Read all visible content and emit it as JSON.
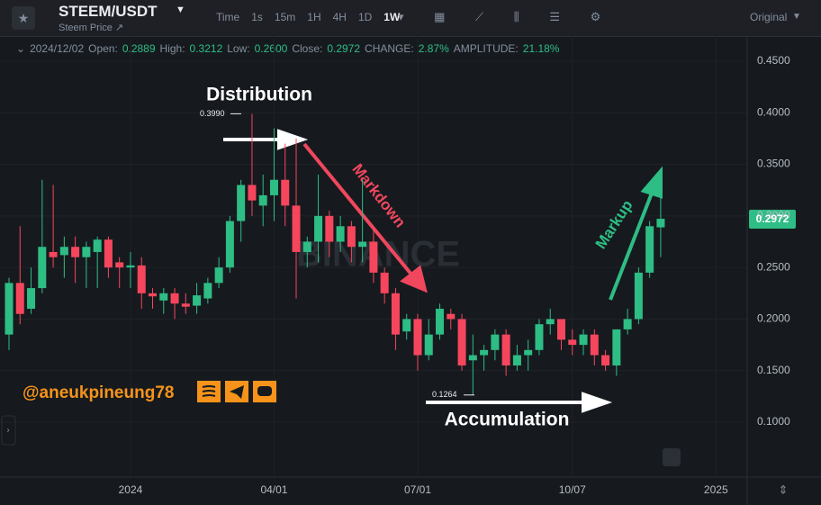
{
  "header": {
    "symbol": "STEEM/USDT",
    "subtitle": "Steem Price ↗",
    "toolbar": [
      "Time",
      "1s",
      "15m",
      "1H",
      "4H",
      "1D",
      "1W"
    ],
    "active_interval": "1W",
    "mode": "Original"
  },
  "info": {
    "date": "2024/12/02",
    "fields": [
      [
        "Open:",
        "0.2889"
      ],
      [
        "High:",
        "0.3212"
      ],
      [
        "Low:",
        "0.2600"
      ],
      [
        "Close:",
        "0.2972"
      ],
      [
        "CHANGE:",
        "2.87%"
      ],
      [
        "AMPLITUDE:",
        "21.18%"
      ]
    ]
  },
  "chart_data": {
    "type": "candlestick",
    "categories": [
      null,
      null,
      null,
      null,
      null,
      null,
      null,
      null,
      null,
      null,
      null,
      null,
      null,
      null,
      null,
      null,
      null,
      null,
      null,
      null,
      null,
      null,
      null,
      null,
      null,
      null,
      null,
      null,
      null,
      null,
      null,
      null,
      null,
      null,
      null,
      null,
      null,
      null,
      null,
      null,
      null,
      null,
      null,
      null,
      null,
      null,
      null,
      null,
      null,
      null,
      null,
      null,
      null,
      null,
      null,
      null,
      null,
      null,
      null,
      null
    ],
    "open": [
      0.185,
      0.235,
      0.21,
      0.23,
      0.265,
      0.262,
      0.27,
      0.26,
      0.265,
      0.277,
      0.255,
      0.25,
      0.252,
      0.225,
      0.218,
      0.225,
      0.215,
      0.213,
      0.22,
      0.235,
      0.25,
      0.295,
      0.33,
      0.31,
      0.32,
      0.335,
      0.31,
      0.265,
      0.275,
      0.3,
      0.275,
      0.29,
      0.27,
      0.275,
      0.245,
      0.225,
      0.188,
      0.2,
      0.165,
      0.185,
      0.205,
      0.2,
      0.16,
      0.165,
      0.17,
      0.185,
      0.155,
      0.165,
      0.17,
      0.195,
      0.2,
      0.18,
      0.175,
      0.185,
      0.165,
      0.155,
      0.19,
      0.2,
      0.245,
      0.2889
    ],
    "high": [
      0.24,
      0.29,
      0.25,
      0.335,
      0.33,
      0.28,
      0.28,
      0.275,
      0.28,
      0.28,
      0.26,
      0.265,
      0.26,
      0.23,
      0.23,
      0.23,
      0.225,
      0.235,
      0.24,
      0.26,
      0.3,
      0.335,
      0.399,
      0.34,
      0.385,
      0.37,
      0.375,
      0.28,
      0.34,
      0.305,
      0.3,
      0.295,
      0.335,
      0.29,
      0.25,
      0.23,
      0.205,
      0.205,
      0.2,
      0.215,
      0.21,
      0.205,
      0.185,
      0.175,
      0.19,
      0.19,
      0.175,
      0.18,
      0.2,
      0.21,
      0.2,
      0.19,
      0.19,
      0.19,
      0.17,
      0.19,
      0.21,
      0.25,
      0.295,
      0.3212
    ],
    "low": [
      0.17,
      0.195,
      0.205,
      0.225,
      0.25,
      0.24,
      0.235,
      0.23,
      0.23,
      0.24,
      0.23,
      0.23,
      0.21,
      0.21,
      0.205,
      0.2,
      0.205,
      0.205,
      0.215,
      0.23,
      0.245,
      0.275,
      0.3,
      0.29,
      0.295,
      0.29,
      0.22,
      0.25,
      0.255,
      0.26,
      0.265,
      0.255,
      0.255,
      0.235,
      0.215,
      0.17,
      0.18,
      0.15,
      0.16,
      0.18,
      0.19,
      0.15,
      0.1264,
      0.15,
      0.16,
      0.145,
      0.15,
      0.15,
      0.165,
      0.185,
      0.17,
      0.165,
      0.165,
      0.155,
      0.15,
      0.145,
      0.185,
      0.195,
      0.24,
      0.26
    ],
    "close": [
      0.235,
      0.205,
      0.23,
      0.27,
      0.26,
      0.27,
      0.26,
      0.27,
      0.277,
      0.25,
      0.25,
      0.252,
      0.225,
      0.222,
      0.225,
      0.215,
      0.212,
      0.223,
      0.235,
      0.25,
      0.295,
      0.33,
      0.315,
      0.32,
      0.335,
      0.31,
      0.265,
      0.275,
      0.3,
      0.275,
      0.29,
      0.27,
      0.275,
      0.245,
      0.225,
      0.185,
      0.2,
      0.165,
      0.185,
      0.21,
      0.2,
      0.155,
      0.165,
      0.17,
      0.185,
      0.155,
      0.165,
      0.17,
      0.195,
      0.2,
      0.18,
      0.175,
      0.185,
      0.165,
      0.155,
      0.19,
      0.2,
      0.245,
      0.29,
      0.2972
    ],
    "up_color": "#2ebd85",
    "down_color": "#f6465d",
    "ylim": [
      0.0468,
      0.4744
    ],
    "yticks": [
      {
        "value": 0.45,
        "label": "0.4500"
      },
      {
        "value": 0.4,
        "label": "0.4000"
      },
      {
        "value": 0.35,
        "label": "0.3500"
      },
      {
        "value": 0.3,
        "label": "0.3000"
      },
      {
        "value": 0.25,
        "label": "0.2500"
      },
      {
        "value": 0.2,
        "label": "0.2000"
      },
      {
        "value": 0.15,
        "label": "0.1500"
      },
      {
        "value": 0.1,
        "label": "0.1000"
      }
    ],
    "xlim": [
      -0.815,
      66.83
    ],
    "xticks": [
      {
        "value": 11,
        "label": "2024"
      },
      {
        "value": 24,
        "label": "04/01"
      },
      {
        "value": 37,
        "label": "07/01"
      },
      {
        "value": 51,
        "label": "10/07"
      },
      {
        "value": 64,
        "label": "2025"
      }
    ],
    "grid": true,
    "high_marker": {
      "value": 0.399,
      "label": "0.3990"
    },
    "low_marker": {
      "value": 0.1264,
      "label": "0.1264"
    },
    "annotations": [
      "Distribution",
      "Markdown",
      "Accumulation",
      "Markup",
      "@aneukpineung78"
    ],
    "watermark": "BINANCE"
  }
}
